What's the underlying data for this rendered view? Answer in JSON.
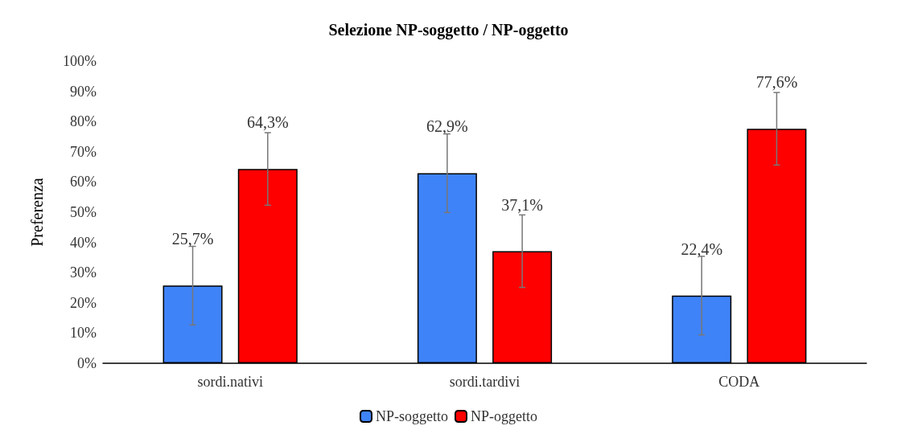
{
  "chart_data": {
    "type": "bar",
    "title": "Selezione NP-soggetto / NP-oggetto",
    "ylabel": "Preferenza",
    "categories": [
      "sordi.nativi",
      "sordi.tardivi",
      "CODA"
    ],
    "series": [
      {
        "name": "NP-soggetto",
        "color": "#3f83f8",
        "values": [
          25.7,
          62.9,
          22.4
        ],
        "errors": [
          13,
          13,
          13
        ],
        "value_labels": [
          "25,7%",
          "62,9%",
          "22,4%"
        ]
      },
      {
        "name": "NP-oggetto",
        "color": "#ff0000",
        "values": [
          64.3,
          37.1,
          77.6
        ],
        "errors": [
          12,
          12,
          12
        ],
        "value_labels": [
          "64,3%",
          "37,1%",
          "77,6%"
        ]
      }
    ],
    "ylim": [
      0,
      100
    ],
    "yticks": [
      {
        "value": 0,
        "label": "0%"
      },
      {
        "value": 10,
        "label": "10%"
      },
      {
        "value": 20,
        "label": "20%"
      },
      {
        "value": 30,
        "label": "30%"
      },
      {
        "value": 40,
        "label": "40%"
      },
      {
        "value": 50,
        "label": "50%"
      },
      {
        "value": 60,
        "label": "60%"
      },
      {
        "value": 70,
        "label": "70%"
      },
      {
        "value": 80,
        "label": "80%"
      },
      {
        "value": 90,
        "label": "90%"
      },
      {
        "value": 100,
        "label": "100%"
      }
    ],
    "grid": false,
    "legend": "bottom"
  }
}
